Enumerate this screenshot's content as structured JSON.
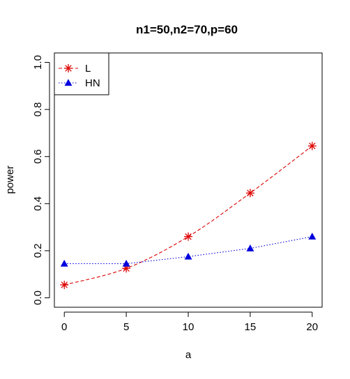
{
  "chart_data": {
    "type": "line",
    "title": "n1=50,n2=70,p=60",
    "xlabel": "a",
    "ylabel": "power",
    "x": [
      0,
      5,
      10,
      15,
      20
    ],
    "xlim": [
      -0.8,
      20.8
    ],
    "ylim": [
      -0.04,
      1.04
    ],
    "xticks": [
      "0",
      "5",
      "10",
      "15",
      "20"
    ],
    "yticks": [
      "0.0",
      "0.2",
      "0.4",
      "0.6",
      "0.8",
      "1.0"
    ],
    "legend_position": "top-left",
    "series": [
      {
        "name": "L",
        "values": [
          0.055,
          0.125,
          0.26,
          0.445,
          0.645
        ],
        "color": "#dd0000",
        "marker": "asterisk",
        "dash": "dashed"
      },
      {
        "name": "HN",
        "values": [
          0.145,
          0.145,
          0.175,
          0.21,
          0.26
        ],
        "color": "#0000dd",
        "marker": "triangle",
        "dash": "dotted"
      }
    ]
  }
}
